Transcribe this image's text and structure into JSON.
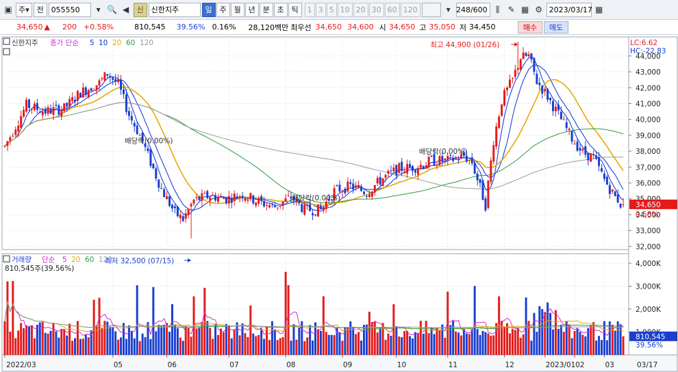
{
  "toolbar": {
    "market_button": "주",
    "code_type_button": "전",
    "stock_code": "055550",
    "stock_code_placeholder": "종목코드",
    "credit_badge": "신",
    "stock_name": "신한지주",
    "period_tabs": [
      "일",
      "주",
      "월",
      "년",
      "분",
      "초",
      "틱"
    ],
    "active_period": "일",
    "interval_buttons": [
      "1",
      "3",
      "5",
      "10",
      "20",
      "30",
      "60",
      "120"
    ],
    "data_count": "248/600",
    "date": "2023/03/17"
  },
  "quote": {
    "price": "34,650",
    "change_arrow": "▲",
    "change": "200",
    "change_pct": "+0.58%",
    "volume": "810,545",
    "volume_ratio": "39.56%",
    "turnover": "0.16%",
    "amount": "28,120백만",
    "best_bid_label": "최우선",
    "best_ask": "34,650",
    "best_bid": "34,600",
    "open_label": "시",
    "open": "34,650",
    "high_label": "고",
    "high": "35,050",
    "low_label": "저",
    "low": "34,450",
    "buy_label": "매수",
    "sell_label": "매도"
  },
  "price_panel": {
    "legend_name": "신한지주",
    "legend_ma_prefix": "종가 단순",
    "ma_periods": [
      "5",
      "10",
      "20",
      "60",
      "120"
    ],
    "ma_colors": [
      "#0b2fd6",
      "#0b2fd6",
      "#e6a800",
      "#2e9b3e",
      "#9a9a9a"
    ],
    "lc_label": "LC:6.62",
    "hc_label": "HC:-22.83",
    "current_price_label": "34,650",
    "current_pct_label": "0.58%",
    "max_annotation": "최고 44,900 (01/26)",
    "min_annotation": "최저 32,500 (07/15)",
    "dividend_label": "배당락(0.00%)",
    "y_ticks": [
      "44,000",
      "43,000",
      "42,000",
      "41,000",
      "40,000",
      "39,000",
      "38,000",
      "37,000",
      "36,000",
      "35,000",
      "34,000",
      "33,000",
      "32,000"
    ]
  },
  "volume_panel": {
    "legend_name": "거래량",
    "legend_ma_prefix": "단순",
    "ma_periods": [
      "5",
      "20",
      "60",
      "120"
    ],
    "ma_colors": [
      "#d02bd0",
      "#e6a800",
      "#2e9b3e",
      "#9a9a9a"
    ],
    "current_volume_text": "810,545주(39.56%)",
    "current_volume_label": "810,545",
    "current_volume_pct": "39.56%",
    "y_ticks": [
      "4,000K",
      "3,000K",
      "2,000K",
      "1,000K"
    ]
  },
  "x_axis": {
    "labels": [
      "2022/03",
      "05",
      "06",
      "07",
      "08",
      "09",
      "10",
      "11",
      "12",
      "2023/01",
      "02",
      "03"
    ],
    "right_label": "03/17"
  },
  "colors": {
    "up": "#e31b1b",
    "down": "#1a3fcf",
    "grid": "#d9dde3",
    "accent": "#3b6fd0"
  },
  "chart_data": {
    "type": "candlestick",
    "price_range": [
      32000,
      44900
    ],
    "volume_range": [
      0,
      4000000
    ],
    "price_guide": [
      [
        0,
        38300
      ],
      [
        8,
        40900
      ],
      [
        15,
        40500
      ],
      [
        22,
        40700
      ],
      [
        28,
        41700
      ],
      [
        35,
        42300
      ],
      [
        38,
        42900
      ],
      [
        42,
        42200
      ],
      [
        46,
        40300
      ],
      [
        50,
        39000
      ],
      [
        54,
        37300
      ],
      [
        58,
        35600
      ],
      [
        63,
        34100
      ],
      [
        66,
        33700
      ],
      [
        70,
        34900
      ],
      [
        76,
        35200
      ],
      [
        82,
        35000
      ],
      [
        88,
        35300
      ],
      [
        94,
        34800
      ],
      [
        100,
        34500
      ],
      [
        106,
        35100
      ],
      [
        111,
        34300
      ],
      [
        117,
        34300
      ],
      [
        122,
        35500
      ],
      [
        128,
        35800
      ],
      [
        134,
        35400
      ],
      [
        140,
        36300
      ],
      [
        146,
        36900
      ],
      [
        152,
        37000
      ],
      [
        158,
        37400
      ],
      [
        164,
        37400
      ],
      [
        170,
        37700
      ],
      [
        173,
        37300
      ],
      [
        176,
        35700
      ],
      [
        178,
        34600
      ],
      [
        181,
        38700
      ],
      [
        184,
        41200
      ],
      [
        188,
        42500
      ],
      [
        191,
        43900
      ],
      [
        194,
        44000
      ],
      [
        197,
        42400
      ],
      [
        200,
        41700
      ],
      [
        205,
        40300
      ],
      [
        210,
        38800
      ],
      [
        214,
        37900
      ],
      [
        218,
        37600
      ],
      [
        222,
        36200
      ],
      [
        226,
        35100
      ],
      [
        229,
        34650
      ]
    ],
    "dividend_markers": [
      54,
      116,
      163
    ],
    "max_point": [
      190,
      44900
    ],
    "min_point": [
      69,
      32500
    ]
  }
}
